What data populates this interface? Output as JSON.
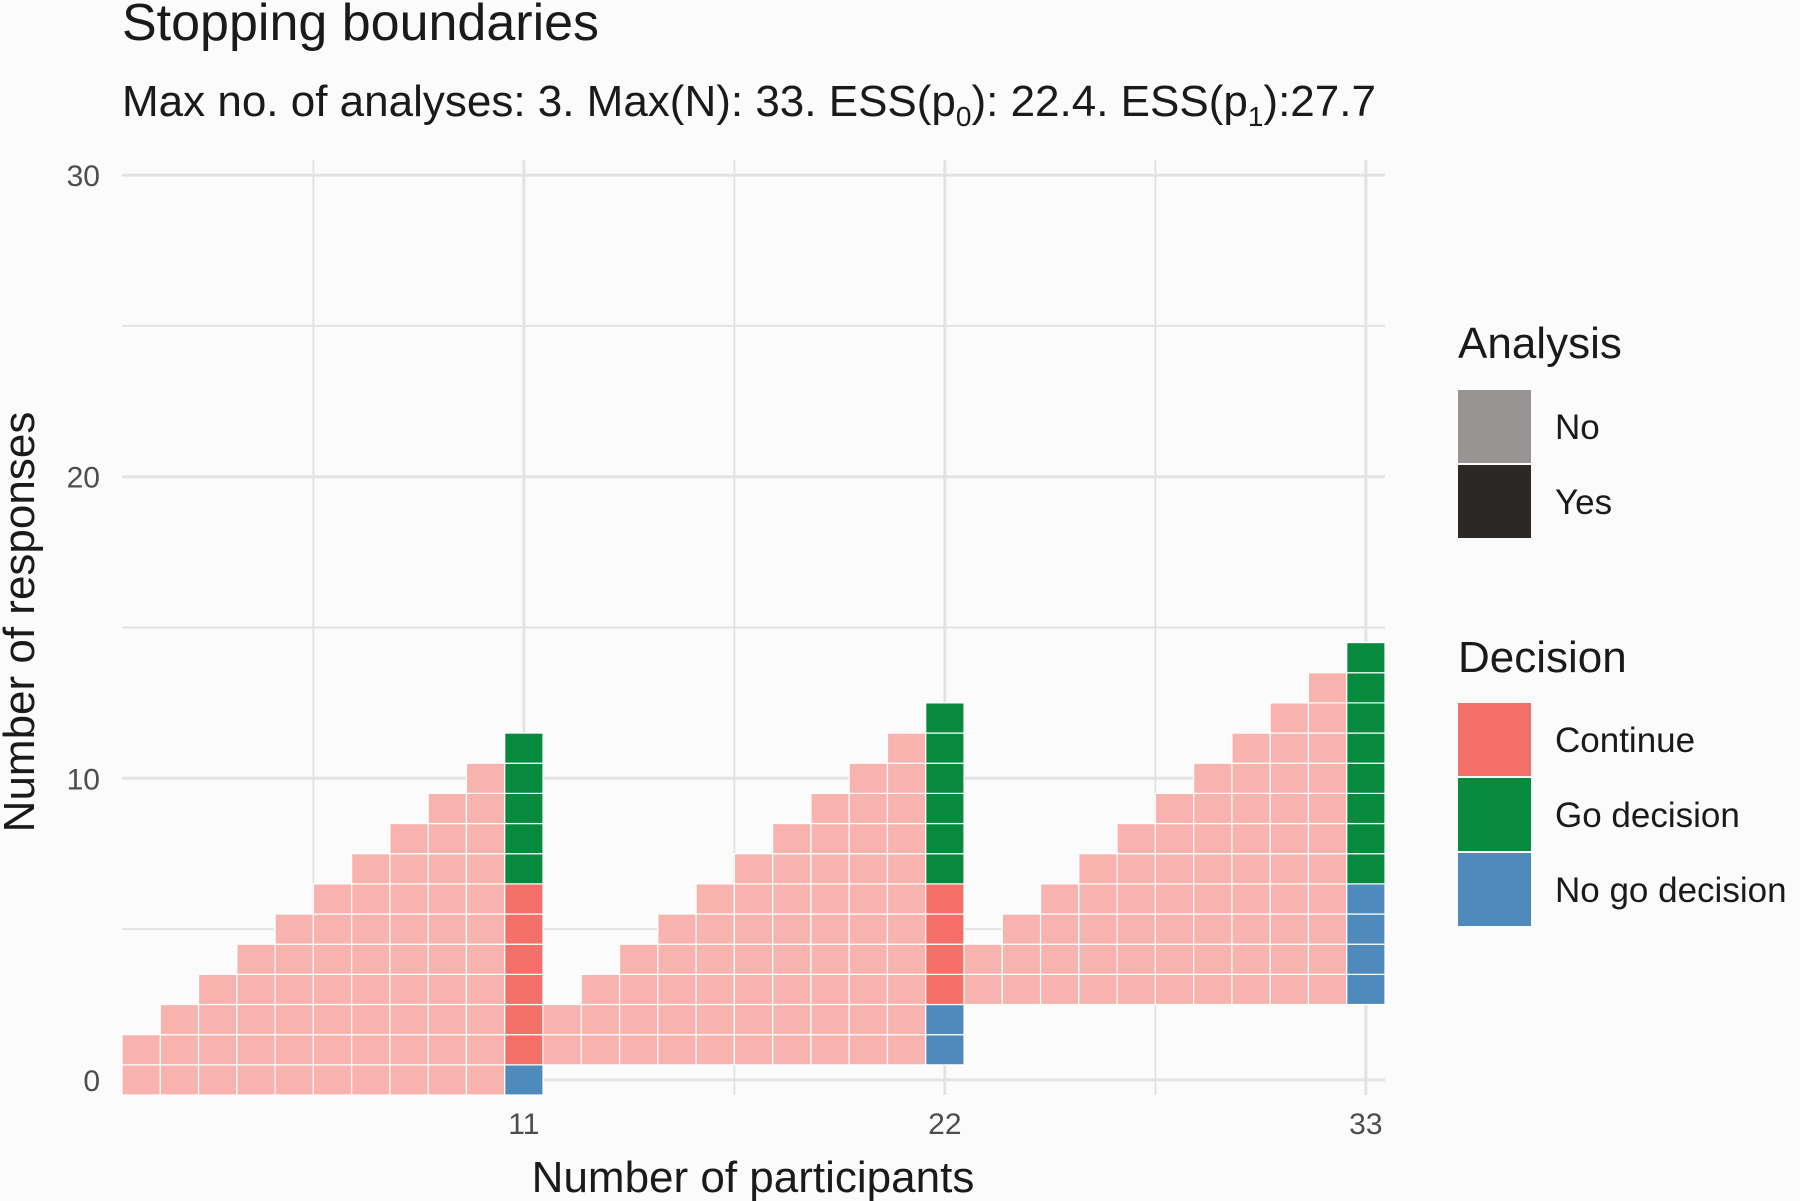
{
  "chart_data": {
    "type": "heatmap",
    "title": "Stopping boundaries",
    "subtitle": {
      "parts": [
        {
          "text": "Max no. of analyses: 3. Max(N): 33. ESS(p"
        },
        {
          "text": "0",
          "sub": true
        },
        {
          "text": "): 22.4. ESS(p"
        },
        {
          "text": "1",
          "sub": true
        },
        {
          "text": "):27.7"
        }
      ]
    },
    "xlabel": "Number of participants",
    "ylabel": "Number of responses",
    "xlim": [
      0.5,
      33.5
    ],
    "ylim": [
      -0.5,
      30.5
    ],
    "x_ticks": [
      11,
      22,
      33
    ],
    "y_ticks": [
      0,
      10,
      20,
      30
    ],
    "grid": true,
    "analysis_points": [
      11,
      22,
      33
    ],
    "columns": [
      {
        "n": 11,
        "no_go_max": 0,
        "continue_max": 6
      },
      {
        "n": 22,
        "no_go_max": 2,
        "continue_max": 6
      },
      {
        "n": 33,
        "no_go_max": 6,
        "continue_max": 6
      }
    ],
    "legends": [
      {
        "title": "Analysis",
        "items": [
          {
            "label": "No",
            "color": "#999494"
          },
          {
            "label": "Yes",
            "color": "#2b2826"
          }
        ]
      },
      {
        "title": "Decision",
        "items": [
          {
            "label": "Continue",
            "color": "#f27068"
          },
          {
            "label": "Go decision",
            "color": "#068a3e"
          },
          {
            "label": "No go decision",
            "color": "#4f8abd"
          }
        ]
      }
    ],
    "colors": {
      "continue_faded": "#f9b3ae",
      "continue": "#f27068",
      "go": "#068a3e",
      "no_go": "#4f8abd",
      "grid": "#e3e3e3",
      "background": "#fbfbfb"
    }
  }
}
